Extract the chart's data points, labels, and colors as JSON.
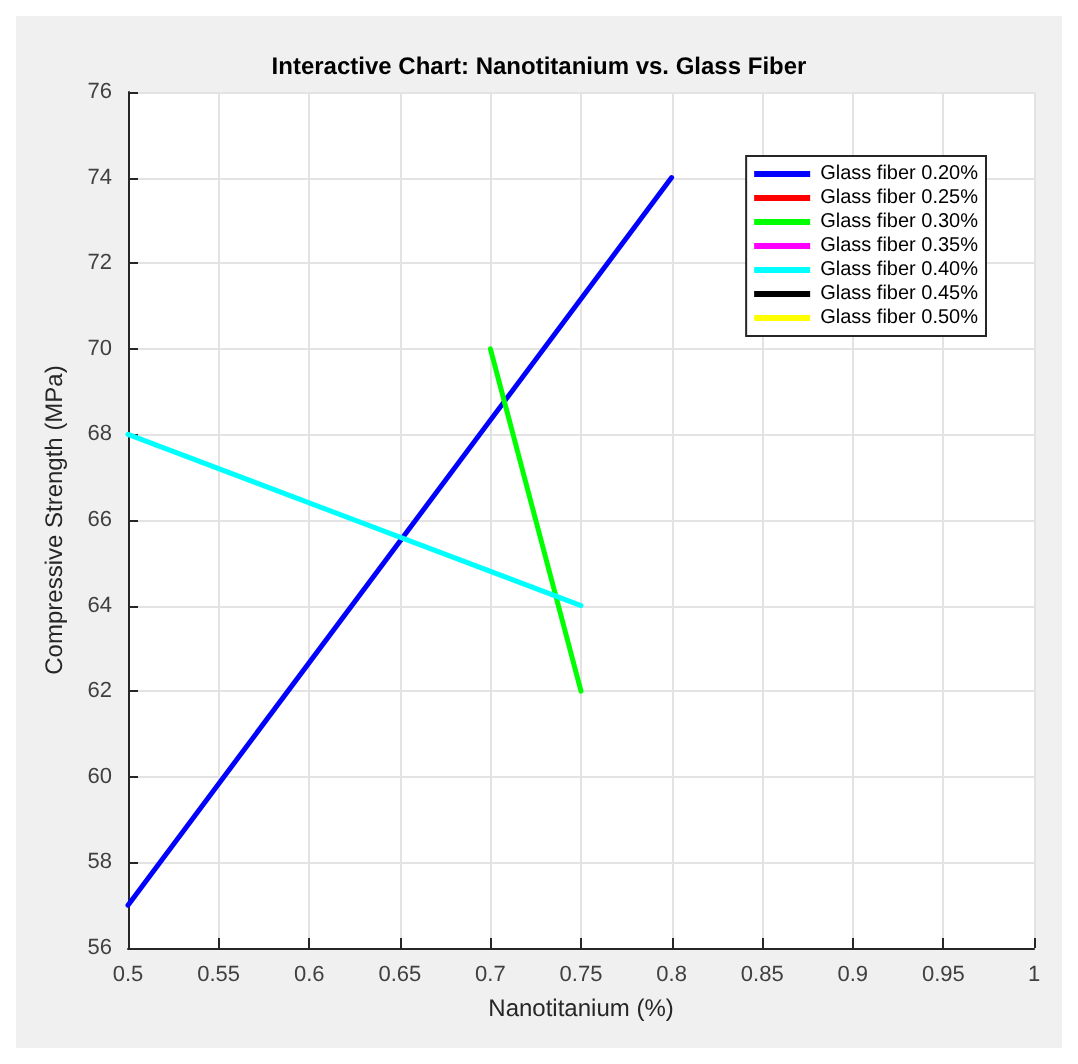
{
  "chart_data": {
    "type": "line",
    "title": "Interactive Chart: Nanotitanium vs. Glass Fiber",
    "xlabel": "Nanotitanium (%)",
    "ylabel": "Compressive Strength (MPa)",
    "xlim": [
      0.5,
      1
    ],
    "xticks": [
      0.5,
      0.55,
      0.6,
      0.65,
      0.7,
      0.75,
      0.8,
      0.85,
      0.9,
      0.95,
      1
    ],
    "ylim": [
      56,
      76
    ],
    "yticks": [
      56,
      58,
      60,
      62,
      64,
      66,
      68,
      70,
      72,
      74,
      76
    ],
    "grid": true,
    "legend": "top right",
    "marker": "none",
    "line_style": "solid",
    "series": [
      {
        "name": "Glass fiber 0.20%",
        "color": "#0000ff",
        "x": [
          0.5,
          0.8
        ],
        "values": [
          57,
          74
        ]
      },
      {
        "name": "Glass fiber 0.25%",
        "color": "#ff0000"
      },
      {
        "name": "Glass fiber 0.30%",
        "color": "#00ff00",
        "x": [
          0.7,
          0.75
        ],
        "values": [
          70,
          62
        ]
      },
      {
        "name": "Glass fiber 0.35%",
        "color": "#ff00ff"
      },
      {
        "name": "Glass fiber 0.40%",
        "color": "#00ffff",
        "x": [
          0.5,
          0.75
        ],
        "values": [
          68,
          64
        ]
      },
      {
        "name": "Glass fiber 0.45%",
        "color": "#000000"
      },
      {
        "name": "Glass fiber 0.50%",
        "color": "#ffff00"
      }
    ]
  }
}
